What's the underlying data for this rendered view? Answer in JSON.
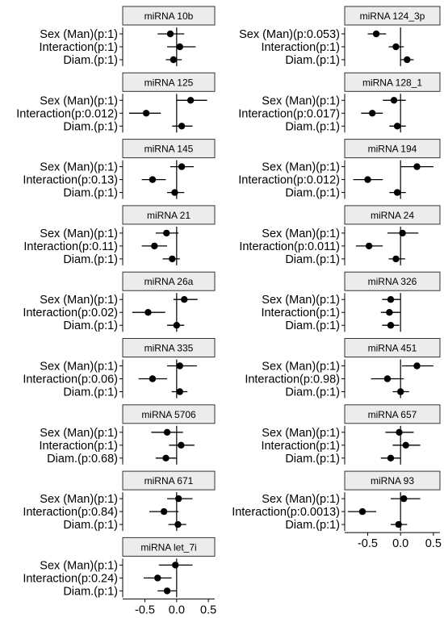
{
  "chart_data": {
    "type": "forest",
    "xlim": [
      -0.85,
      0.6
    ],
    "x_ticks": [
      -0.5,
      0.0,
      0.5
    ],
    "x_tick_labels": [
      "-0.5",
      "0.0",
      "0.5"
    ],
    "grid": false,
    "reference_line_x": 0,
    "panels": [
      {
        "title": "miRNA 10b",
        "rows": [
          {
            "label": "Sex (Man)(p:1)",
            "estimate": -0.1,
            "ci": [
              -0.3,
              0.12
            ]
          },
          {
            "label": "Interaction(p:1)",
            "estimate": 0.05,
            "ci": [
              -0.15,
              0.3
            ]
          },
          {
            "label": "Diam.(p:1)",
            "estimate": -0.05,
            "ci": [
              -0.17,
              0.08
            ]
          }
        ]
      },
      {
        "title": "miRNA 124_3p",
        "rows": [
          {
            "label": "Sex (Man)(p:0.053)",
            "estimate": -0.37,
            "ci": [
              -0.5,
              -0.22
            ]
          },
          {
            "label": "Interaction(p:1)",
            "estimate": -0.07,
            "ci": [
              -0.18,
              0.05
            ]
          },
          {
            "label": "Diam.(p:1)",
            "estimate": 0.1,
            "ci": [
              0.0,
              0.2
            ]
          }
        ]
      },
      {
        "title": "miRNA 125",
        "rows": [
          {
            "label": "Sex (Man)(p:1)",
            "estimate": 0.22,
            "ci": [
              0.0,
              0.48
            ]
          },
          {
            "label": "Interaction(p:0.012)",
            "estimate": -0.48,
            "ci": [
              -0.75,
              -0.25
            ]
          },
          {
            "label": "Diam.(p:1)",
            "estimate": 0.08,
            "ci": [
              -0.07,
              0.25
            ]
          }
        ]
      },
      {
        "title": "miRNA 128_1",
        "rows": [
          {
            "label": "Sex (Man)(p:1)",
            "estimate": -0.1,
            "ci": [
              -0.27,
              0.08
            ]
          },
          {
            "label": "Interaction(p:0.017)",
            "estimate": -0.43,
            "ci": [
              -0.6,
              -0.27
            ]
          },
          {
            "label": "Diam.(p:1)",
            "estimate": -0.05,
            "ci": [
              -0.17,
              0.08
            ]
          }
        ]
      },
      {
        "title": "miRNA 145",
        "rows": [
          {
            "label": "Sex (Man)(p:1)",
            "estimate": 0.08,
            "ci": [
              -0.1,
              0.27
            ]
          },
          {
            "label": "Interaction(p:0.13)",
            "estimate": -0.38,
            "ci": [
              -0.55,
              -0.17
            ]
          },
          {
            "label": "Diam.(p:1)",
            "estimate": -0.03,
            "ci": [
              -0.15,
              0.12
            ]
          }
        ]
      },
      {
        "title": "miRNA 194",
        "rows": [
          {
            "label": "Sex (Man)(p:1)",
            "estimate": 0.25,
            "ci": [
              0.0,
              0.5
            ]
          },
          {
            "label": "Interaction(p:0.012)",
            "estimate": -0.5,
            "ci": [
              -0.72,
              -0.27
            ]
          },
          {
            "label": "Diam.(p:1)",
            "estimate": -0.05,
            "ci": [
              -0.17,
              0.08
            ]
          }
        ]
      },
      {
        "title": "miRNA 21",
        "rows": [
          {
            "label": "Sex (Man)(p:1)",
            "estimate": -0.16,
            "ci": [
              -0.33,
              0.03
            ]
          },
          {
            "label": "Interaction(p:0.11)",
            "estimate": -0.35,
            "ci": [
              -0.55,
              -0.15
            ]
          },
          {
            "label": "Diam.(p:1)",
            "estimate": -0.07,
            "ci": [
              -0.22,
              0.05
            ]
          }
        ]
      },
      {
        "title": "miRNA 24",
        "rows": [
          {
            "label": "Sex (Man)(p:1)",
            "estimate": 0.03,
            "ci": [
              -0.2,
              0.27
            ]
          },
          {
            "label": "Interaction(p:0.011)",
            "estimate": -0.48,
            "ci": [
              -0.68,
              -0.27
            ]
          },
          {
            "label": "Diam.(p:1)",
            "estimate": -0.07,
            "ci": [
              -0.18,
              0.07
            ]
          }
        ]
      },
      {
        "title": "miRNA 26a",
        "rows": [
          {
            "label": "Sex (Man)(p:1)",
            "estimate": 0.12,
            "ci": [
              -0.05,
              0.33
            ]
          },
          {
            "label": "Interaction(p:0.02)",
            "estimate": -0.45,
            "ci": [
              -0.7,
              -0.18
            ]
          },
          {
            "label": "Diam.(p:1)",
            "estimate": 0.0,
            "ci": [
              -0.15,
              0.12
            ]
          }
        ]
      },
      {
        "title": "miRNA 326",
        "rows": [
          {
            "label": "Sex (Man)(p:1)",
            "estimate": -0.15,
            "ci": [
              -0.28,
              0.0
            ]
          },
          {
            "label": "Interaction(p:1)",
            "estimate": -0.17,
            "ci": [
              -0.3,
              0.0
            ]
          },
          {
            "label": "Diam.(p:1)",
            "estimate": -0.15,
            "ci": [
              -0.28,
              -0.02
            ]
          }
        ]
      },
      {
        "title": "miRNA 335",
        "rows": [
          {
            "label": "Sex (Man)(p:1)",
            "estimate": 0.05,
            "ci": [
              -0.15,
              0.32
            ]
          },
          {
            "label": "Interaction(p:0.06)",
            "estimate": -0.38,
            "ci": [
              -0.6,
              -0.15
            ]
          },
          {
            "label": "Diam.(p:1)",
            "estimate": 0.05,
            "ci": [
              -0.08,
              0.17
            ]
          }
        ]
      },
      {
        "title": "miRNA 451",
        "rows": [
          {
            "label": "Sex (Man)(p:1)",
            "estimate": 0.25,
            "ci": [
              0.02,
              0.5
            ]
          },
          {
            "label": "Interaction(p:0.98)",
            "estimate": -0.2,
            "ci": [
              -0.45,
              0.05
            ]
          },
          {
            "label": "Diam.(p:1)",
            "estimate": 0.0,
            "ci": [
              -0.12,
              0.13
            ]
          }
        ]
      },
      {
        "title": "miRNA 5706",
        "rows": [
          {
            "label": "Sex (Man)(p:1)",
            "estimate": -0.15,
            "ci": [
              -0.4,
              0.1
            ]
          },
          {
            "label": "Interaction(p:1)",
            "estimate": 0.07,
            "ci": [
              -0.12,
              0.28
            ]
          },
          {
            "label": "Diam.(p:0.68)",
            "estimate": -0.17,
            "ci": [
              -0.33,
              0.0
            ]
          }
        ]
      },
      {
        "title": "miRNA 657",
        "rows": [
          {
            "label": "Sex (Man)(p:1)",
            "estimate": -0.02,
            "ci": [
              -0.23,
              0.2
            ]
          },
          {
            "label": "Interaction(p:1)",
            "estimate": 0.08,
            "ci": [
              -0.12,
              0.3
            ]
          },
          {
            "label": "Diam.(p:1)",
            "estimate": -0.15,
            "ci": [
              -0.3,
              0.0
            ]
          }
        ]
      },
      {
        "title": "miRNA 671",
        "rows": [
          {
            "label": "Sex (Man)(p:1)",
            "estimate": 0.03,
            "ci": [
              -0.15,
              0.25
            ]
          },
          {
            "label": "Interaction(p:0.84)",
            "estimate": -0.2,
            "ci": [
              -0.43,
              0.03
            ]
          },
          {
            "label": "Diam.(p:1)",
            "estimate": 0.02,
            "ci": [
              -0.13,
              0.15
            ]
          }
        ]
      },
      {
        "title": "miRNA 93",
        "rows": [
          {
            "label": "Sex (Man)(p:1)",
            "estimate": 0.05,
            "ci": [
              -0.15,
              0.3
            ]
          },
          {
            "label": "Interaction(p:0.0013)",
            "estimate": -0.58,
            "ci": [
              -0.8,
              -0.37
            ]
          },
          {
            "label": "Diam.(p:1)",
            "estimate": -0.03,
            "ci": [
              -0.15,
              0.1
            ]
          }
        ]
      },
      {
        "title": "miRNA let_7i",
        "rows": [
          {
            "label": "Sex (Man)(p:1)",
            "estimate": -0.02,
            "ci": [
              -0.28,
              0.25
            ]
          },
          {
            "label": "Interaction(p:0.24)",
            "estimate": -0.3,
            "ci": [
              -0.52,
              -0.08
            ]
          },
          {
            "label": "Diam.(p:1)",
            "estimate": -0.15,
            "ci": [
              -0.3,
              0.0
            ]
          }
        ]
      }
    ]
  },
  "colors": {
    "point": "#000000",
    "errorbar": "#000000",
    "reference_line": "#000000",
    "axis_line": "#000000",
    "strip_fill": "#ececec",
    "strip_border": "#333333"
  }
}
